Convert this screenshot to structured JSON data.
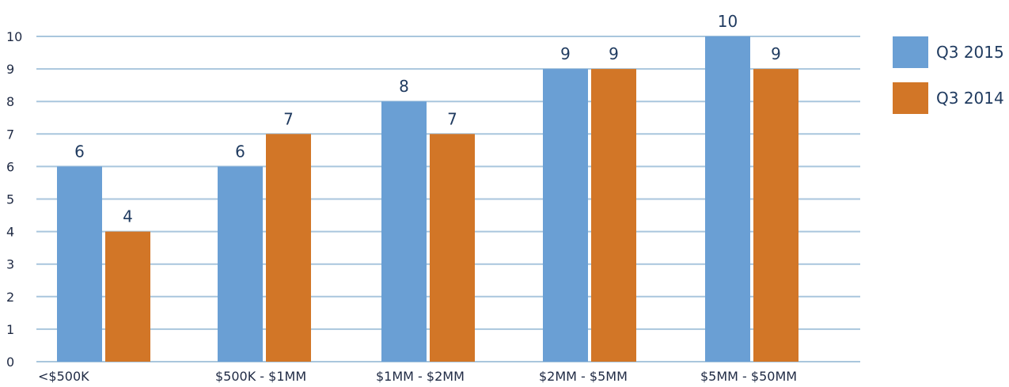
{
  "chart_data": {
    "type": "bar",
    "title": "",
    "xlabel": "",
    "ylabel": "",
    "categories": [
      "<$500K",
      "$500K - $1MM",
      "$1MM - $2MM",
      "$2MM - $5MM",
      "$5MM - $50MM"
    ],
    "series": [
      {
        "name": "Q3 2015",
        "color": "#6a9fd4",
        "values": [
          6,
          6,
          8,
          9,
          10
        ]
      },
      {
        "name": "Q3 2014",
        "color": "#d27627",
        "values": [
          4,
          7,
          7,
          9,
          9
        ]
      }
    ],
    "yticks": [
      "0",
      "1",
      "2",
      "3",
      "4",
      "5",
      "6",
      "7",
      "8",
      "9",
      "10"
    ],
    "ylim": [
      0,
      10
    ],
    "grid": true,
    "gridline_color": "#a9c6dd",
    "legend_position": "right"
  }
}
